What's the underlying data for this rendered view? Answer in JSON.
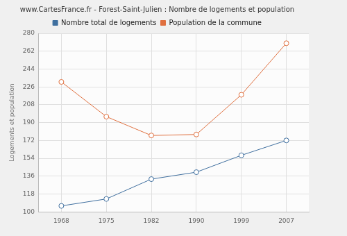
{
  "chart_data": {
    "type": "line",
    "title": "www.CartesFrance.fr - Forest-Saint-Julien : Nombre de logements et population",
    "y_label": "Logements et population",
    "categories": [
      "1968",
      "1975",
      "1982",
      "1990",
      "1999",
      "2007"
    ],
    "series": [
      {
        "name": "Nombre total de logements",
        "color": "#3f6f9f",
        "marker": "circle",
        "values": [
          106,
          113,
          133,
          140,
          157,
          172
        ]
      },
      {
        "name": "Population de la commune",
        "color": "#e0703f",
        "marker": "circle",
        "values": [
          231,
          196,
          177,
          178,
          218,
          270
        ]
      }
    ],
    "ylim": [
      100,
      280
    ],
    "yticks": [
      100,
      118,
      136,
      154,
      172,
      190,
      208,
      226,
      244,
      262,
      280
    ],
    "grid": true,
    "legend": "top"
  }
}
